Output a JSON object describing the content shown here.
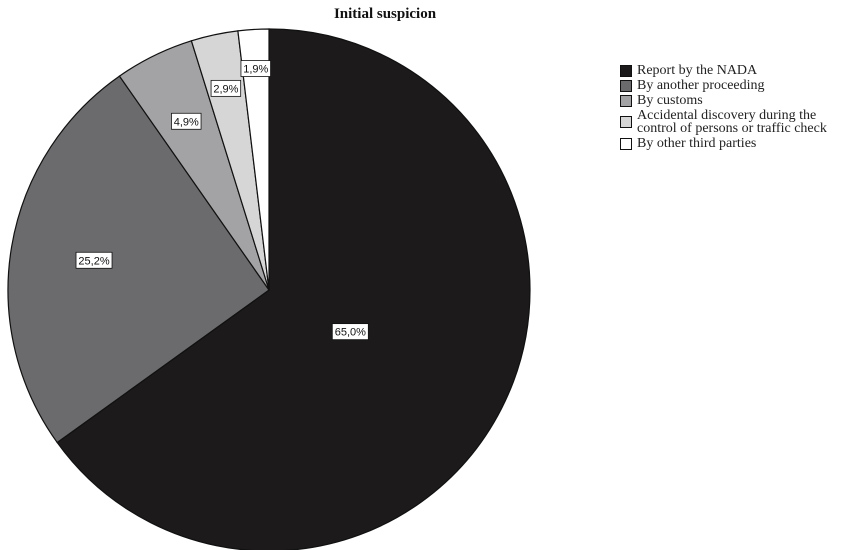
{
  "chart_data": {
    "type": "pie",
    "title": "Initial suspicion",
    "slices": [
      {
        "label": "Report by the NADA",
        "value": 65.0,
        "display": "65,0%",
        "color": "#1c1a1b"
      },
      {
        "label": "By another proceeding",
        "value": 25.2,
        "display": "25,2%",
        "color": "#6b6b6d"
      },
      {
        "label": "By customs",
        "value": 4.9,
        "display": "4,9%",
        "color": "#a3a3a5"
      },
      {
        "label": "Accidental discovery during the control of persons or traffic check",
        "value": 2.9,
        "display": "2,9%",
        "color": "#d6d6d6"
      },
      {
        "label": "By other third parties",
        "value": 1.9,
        "display": "1,9%",
        "color": "#ffffff"
      }
    ],
    "legend_position": "right",
    "start_angle": "12 o'clock",
    "direction": "clockwise"
  }
}
